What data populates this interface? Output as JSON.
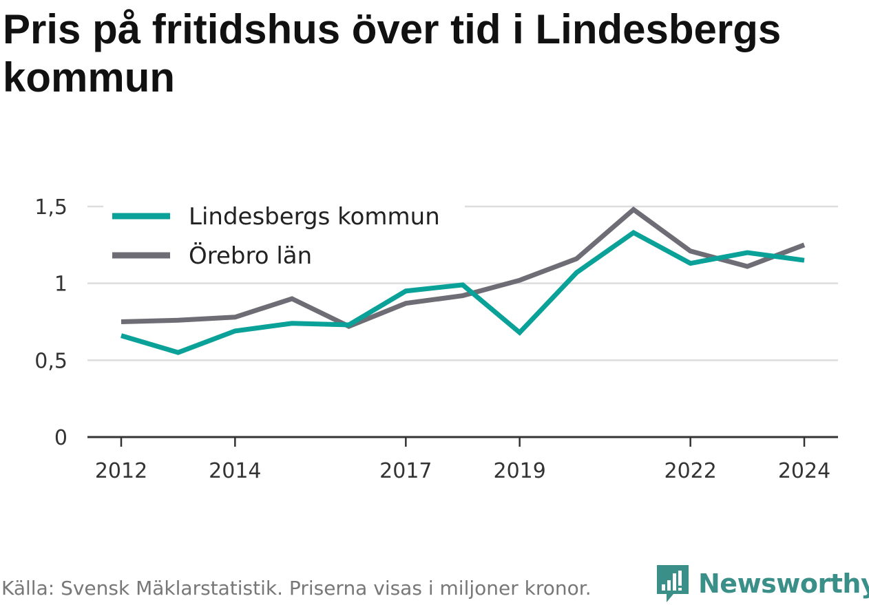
{
  "title": "Pris på fritidshus över tid i Lindesbergs kommun",
  "footer": "Källa: Svensk Mäklarstatistik. Priserna visas i miljoner kronor.",
  "brand": "Newsworthy",
  "colors": {
    "lindesberg": "#0aa198",
    "orebro": "#6e6d75",
    "grid": "#dddddd",
    "axis": "#333333",
    "brand": "#3a8f88"
  },
  "chart_data": {
    "type": "line",
    "x": [
      2012,
      2013,
      2014,
      2015,
      2016,
      2017,
      2018,
      2019,
      2020,
      2021,
      2022,
      2023,
      2024
    ],
    "series": [
      {
        "name": "Lindesbergs kommun",
        "values": [
          0.66,
          0.55,
          0.69,
          0.74,
          0.73,
          0.95,
          0.99,
          0.68,
          1.07,
          1.33,
          1.13,
          1.2,
          1.15
        ]
      },
      {
        "name": "Örebro län",
        "values": [
          0.75,
          0.76,
          0.78,
          0.9,
          0.72,
          0.87,
          0.92,
          1.02,
          1.16,
          1.48,
          1.21,
          1.11,
          1.25
        ]
      }
    ],
    "y_ticks": [
      {
        "value": 0,
        "label": "0"
      },
      {
        "value": 0.5,
        "label": "0,5"
      },
      {
        "value": 1,
        "label": "1"
      },
      {
        "value": 1.5,
        "label": "1,5"
      }
    ],
    "x_ticks": [
      {
        "value": 2012,
        "label": "2012"
      },
      {
        "value": 2014,
        "label": "2014"
      },
      {
        "value": 2017,
        "label": "2017"
      },
      {
        "value": 2019,
        "label": "2019"
      },
      {
        "value": 2022,
        "label": "2022"
      },
      {
        "value": 2024,
        "label": "2024"
      }
    ],
    "ylim": [
      0,
      1.5
    ],
    "xlim": [
      2012,
      2024
    ],
    "grid": true,
    "legend_position": "top-left"
  }
}
